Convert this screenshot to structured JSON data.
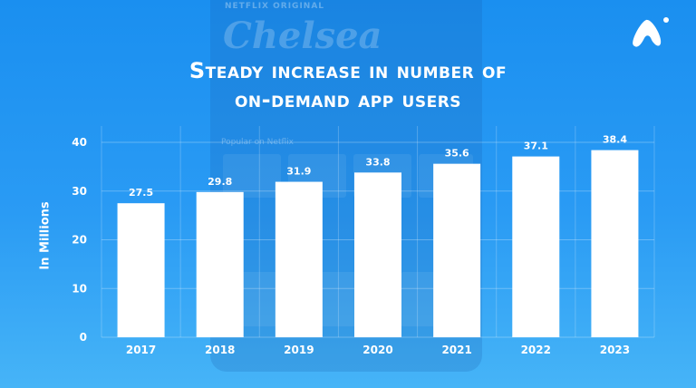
{
  "header": {
    "title_line1": "Steady increase in number of",
    "title_line2": "on-demand app users"
  },
  "background": {
    "brand": "NETFLIX ORIGINAL",
    "show": "Chelsea",
    "row_label": "Popular on Netflix"
  },
  "logo": {
    "icon": "brand-logo-icon",
    "color": "#ffffff"
  },
  "chart_data": {
    "type": "bar",
    "categories": [
      "2017",
      "2018",
      "2019",
      "2020",
      "2021",
      "2022",
      "2023"
    ],
    "values": [
      27.5,
      29.8,
      31.9,
      33.8,
      35.6,
      37.1,
      38.4
    ],
    "title": "Steady increase in number of on-demand app users",
    "xlabel": "",
    "ylabel": "In Millions",
    "ylim": [
      0,
      40
    ],
    "yticks": [
      0,
      10,
      20,
      30,
      40
    ],
    "grid": true,
    "bar_color": "#ffffff",
    "text_color": "#ffffff"
  }
}
